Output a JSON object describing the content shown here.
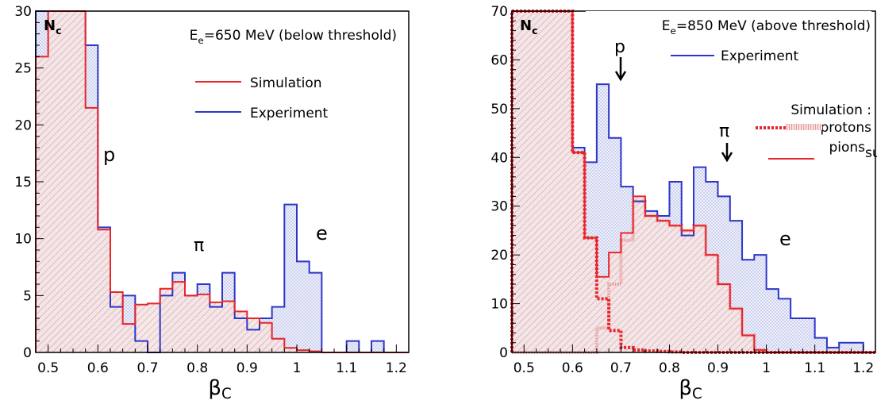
{
  "chart_data": [
    {
      "type": "histogram",
      "xlim": [
        0.475,
        1.225
      ],
      "ylim": [
        0,
        30
      ],
      "x_ticks": [
        "0.5",
        "0.6",
        "0.7",
        "0.8",
        "0.9",
        "1",
        "1.1",
        "1.2"
      ],
      "y_ticks": [
        "0",
        "5",
        "10",
        "15",
        "20",
        "25",
        "30"
      ],
      "xlabel": "β_C",
      "ylabel": "N_c",
      "header": "E_e=650 MeV (below threshold)",
      "legend": [
        {
          "label": "Simulation",
          "color": "#e8252a"
        },
        {
          "label": "Experiment",
          "color": "#2d36c8"
        }
      ],
      "annotations": [
        "p",
        "π",
        "e"
      ],
      "bin_edges": [
        0.475,
        0.5,
        0.525,
        0.55,
        0.575,
        0.6,
        0.625,
        0.65,
        0.675,
        0.7,
        0.725,
        0.75,
        0.775,
        0.8,
        0.825,
        0.85,
        0.875,
        0.9,
        0.925,
        0.95,
        0.975,
        1.0,
        1.025,
        1.05,
        1.075,
        1.1,
        1.125,
        1.15,
        1.175,
        1.2,
        1.225
      ],
      "series": [
        {
          "name": "Experiment",
          "color": "#2d36c8",
          "values": [
            30,
            30,
            30,
            30,
            27,
            11,
            4,
            5,
            1,
            0,
            5,
            7,
            5,
            6,
            4,
            7,
            3,
            2,
            3,
            4,
            13,
            8,
            7,
            0,
            0,
            1,
            0,
            1,
            0,
            0
          ]
        },
        {
          "name": "Simulation",
          "color": "#e8252a",
          "values": [
            26,
            30,
            30,
            30,
            21.5,
            10.8,
            5.3,
            2.5,
            4.2,
            4.3,
            5.6,
            6.2,
            5.0,
            5.1,
            4.4,
            4.5,
            3.6,
            3.0,
            2.6,
            1.2,
            0.4,
            0.2,
            0.1,
            0,
            0,
            0,
            0,
            0,
            0,
            0
          ]
        }
      ]
    },
    {
      "type": "histogram",
      "xlim": [
        0.475,
        1.225
      ],
      "ylim": [
        0,
        70
      ],
      "x_ticks": [
        "0.5",
        "0.6",
        "0.7",
        "0.8",
        "0.9",
        "1",
        "1.1",
        "1.2"
      ],
      "y_ticks": [
        "0",
        "10",
        "20",
        "30",
        "40",
        "50",
        "60",
        "70"
      ],
      "xlabel": "β_C",
      "ylabel": "N_c",
      "header": "E_e=850 MeV (above threshold)",
      "legend": [
        {
          "label": "Experiment",
          "color": "#2d36c8",
          "style": "solid"
        },
        {
          "label": "Simulation :",
          "heading": true
        },
        {
          "label": "protons",
          "color": "#e8252a",
          "style": "dotted"
        },
        {
          "label": "pions",
          "color": "#e89a9a",
          "style": "hatched"
        },
        {
          "label": "sum",
          "color": "#e8252a",
          "style": "solid"
        }
      ],
      "annotations": [
        "p",
        "π",
        "e"
      ],
      "bin_edges": [
        0.475,
        0.5,
        0.525,
        0.55,
        0.575,
        0.6,
        0.625,
        0.65,
        0.675,
        0.7,
        0.725,
        0.75,
        0.775,
        0.8,
        0.825,
        0.85,
        0.875,
        0.9,
        0.925,
        0.95,
        0.975,
        1.0,
        1.025,
        1.05,
        1.075,
        1.1,
        1.125,
        1.15,
        1.175,
        1.2,
        1.225
      ],
      "series": [
        {
          "name": "Experiment",
          "color": "#2d36c8",
          "values": [
            70,
            70,
            70,
            70,
            70,
            42,
            39,
            55,
            44,
            34,
            31,
            29,
            28,
            35,
            24,
            38,
            35,
            32,
            27,
            19,
            20,
            13,
            11,
            7,
            7,
            3,
            1,
            2,
            2,
            0
          ]
        },
        {
          "name": "sum",
          "color": "#e8252a",
          "values": [
            70,
            70,
            70,
            70,
            70,
            41,
            23.5,
            15.5,
            20.5,
            24.5,
            32,
            28,
            27,
            26,
            25,
            26,
            20,
            14,
            9,
            3.5,
            0.5,
            0,
            0,
            0,
            0,
            0,
            0,
            0,
            0,
            0
          ]
        },
        {
          "name": "protons",
          "color": "#e8252a",
          "values": [
            70,
            70,
            70,
            70,
            70,
            41,
            23.5,
            11,
            4.5,
            1.0,
            0.5,
            0.3,
            0.2,
            0.1,
            0,
            0,
            0,
            0,
            0,
            0,
            0,
            0,
            0,
            0,
            0,
            0,
            0,
            0,
            0,
            0
          ]
        },
        {
          "name": "pions",
          "color": "#e89a9a",
          "values": [
            0,
            0,
            0,
            0,
            0,
            0,
            0,
            5,
            14,
            23,
            31,
            28,
            27,
            26,
            25,
            26,
            20,
            14,
            9,
            3.5,
            0.5,
            0,
            0,
            0,
            0,
            0,
            0,
            0,
            0,
            0
          ]
        }
      ]
    }
  ]
}
